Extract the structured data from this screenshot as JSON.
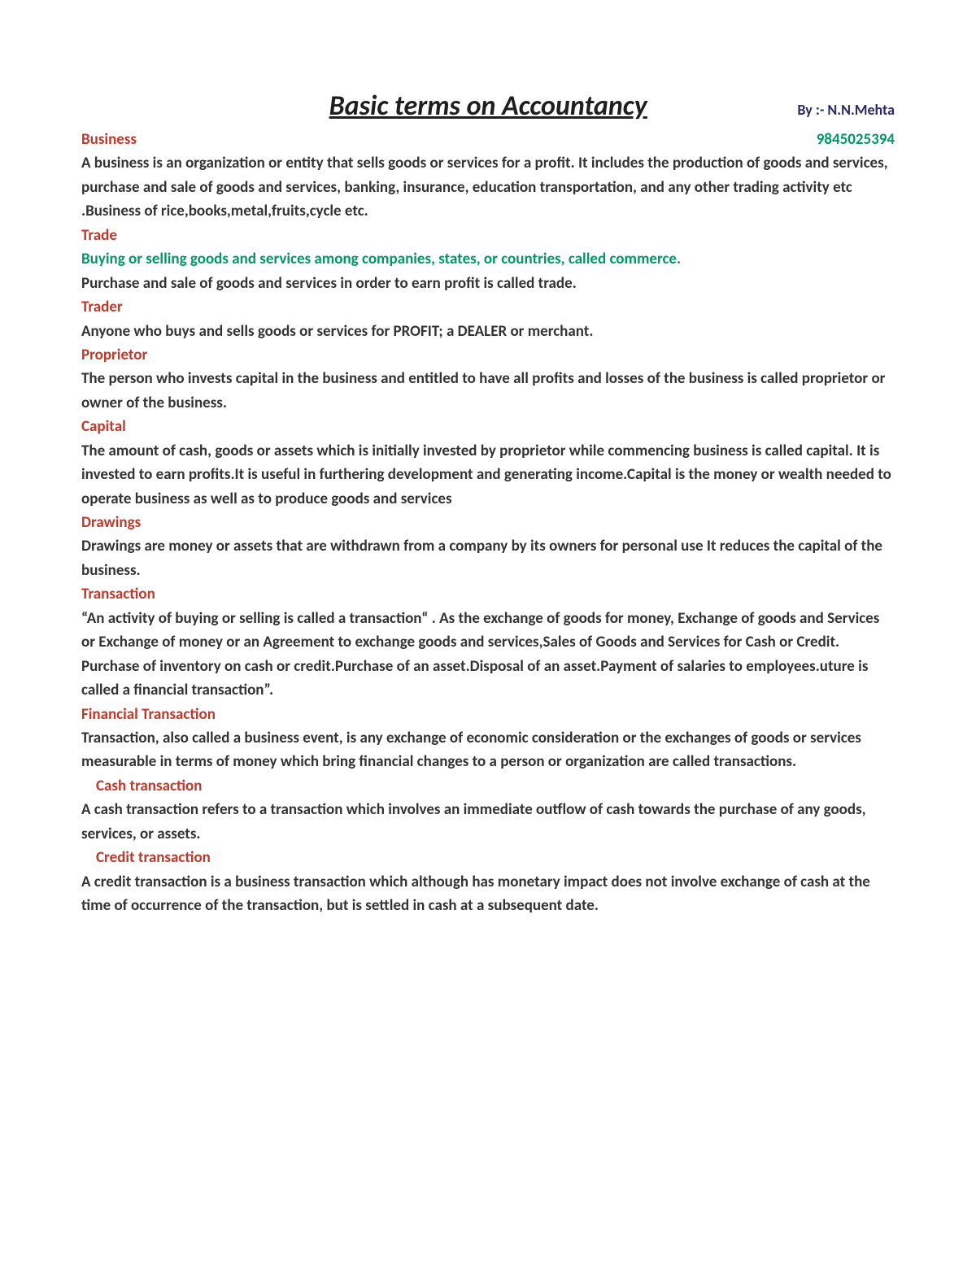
{
  "meta": {
    "title_fontsize": 34,
    "body_fontsize": 19,
    "line_height": 1.55,
    "colors": {
      "title": "#1f1f1f",
      "author": "#2a2a66",
      "term": "#c0392b",
      "green": "#009966",
      "body": "#333333",
      "background": "#ffffff"
    }
  },
  "title": "Basic terms on Accountancy   ",
  "author": "By :- N.N.Mehta",
  "phone": "9845025394",
  "sections": {
    "business": {
      "heading": "Business",
      "body": "A business is an organization or entity that sells goods or services for a profit. It includes the production of goods and services, purchase and sale of goods and services, banking, insurance, education transportation, and any other trading activity etc .Business of rice,books,metal,fruits,cycle etc."
    },
    "trade": {
      "heading": "Trade",
      "green_line": "Buying or selling goods and services among companies, states, or countries, called commerce.",
      "body": "Purchase and sale of goods and services in order to earn profit is called trade."
    },
    "trader": {
      "heading": "Trader",
      "body": "Anyone who buys and sells goods or services for PROFIT; a DEALER or merchant."
    },
    "proprietor": {
      "heading": "Proprietor",
      "body": "The person who invests capital in the business and entitled to have all profits and losses of the business is called proprietor or owner of the business."
    },
    "capital": {
      "heading": " Capital",
      "body": "The amount of cash, goods or assets which is initially invested by proprietor while commencing business is called capital. It is invested to earn profits.It is useful in furthering development and generating income.Capital is the money or wealth needed to operate business as well as to  produce goods and services"
    },
    "drawings": {
      "heading": "Drawings",
      "body": "Drawings are money or assets that are withdrawn from a company by its owners for personal use It reduces the capital of the business."
    },
    "transaction": {
      "heading": "Transaction",
      "body": "“An activity of buying or selling is called a transaction“  . As the exchange of goods for money, Exchange of goods and Services or Exchange of money or an Agreement to exchange goods and services,Sales of Goods and Services for Cash or Credit. Purchase of inventory on cash or credit.Purchase of an asset.Disposal of an asset.Payment of salaries to employees.uture is called a financial transaction”."
    },
    "financial_transaction": {
      "heading": "Financial Transaction",
      "body": "Transaction, also called a business event, is any exchange of economic consideration or the exchanges of goods or services measurable in terms of money which bring financial changes to a person or organization are called transactions."
    },
    "cash_transaction": {
      "heading": "Cash transaction",
      "body": " A cash transaction refers to a transaction which involves an immediate outflow of cash towards the purchase of any goods, services, or assets."
    },
    "credit_transaction": {
      "heading": "Credit transaction",
      "body": "A credit transaction is a business transaction which although has monetary impact does not involve exchange of cash at the time of occurrence of the transaction, but is settled in cash at a subsequent date."
    }
  }
}
